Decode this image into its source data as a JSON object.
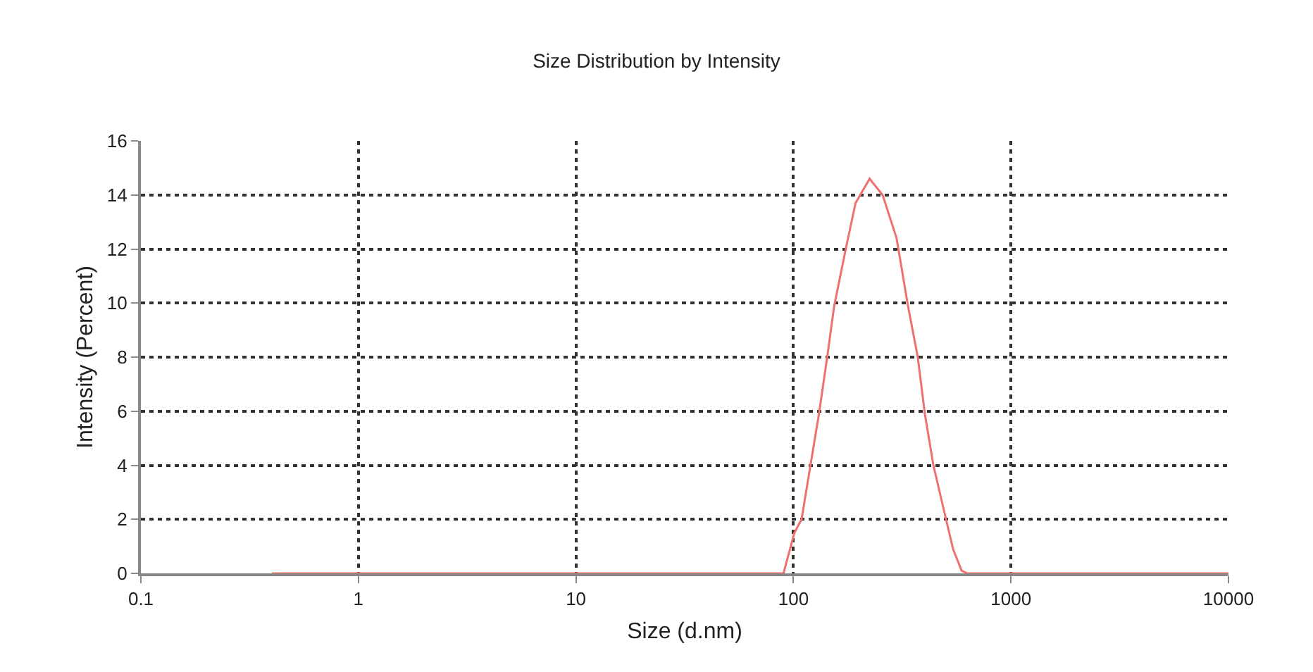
{
  "chart_data": {
    "type": "line",
    "title": "Size Distribution by Intensity",
    "xlabel": "Size (d.nm)",
    "ylabel": "Intensity (Percent)",
    "log": "x",
    "xlim": [
      0.1,
      10000
    ],
    "xticks": [
      0.1,
      1,
      10,
      100,
      1000,
      10000
    ],
    "ylim": [
      0,
      16
    ],
    "yticks": [
      0,
      2,
      4,
      6,
      8,
      10,
      12,
      14,
      16
    ],
    "grid": true,
    "marker": "none",
    "line_style": "solid",
    "series": [
      {
        "color": "#f07070",
        "x": [
          0.4,
          1,
          10,
          90,
          101,
          109,
          131,
          143,
          154,
          174,
          193,
          224,
          257,
          298,
          336,
          373,
          402,
          440,
          503,
          542,
          593,
          630,
          1000,
          10000
        ],
        "values": [
          0,
          0,
          0,
          0,
          1.5,
          2.0,
          5.9,
          8.0,
          9.9,
          12.0,
          13.7,
          14.6,
          14.0,
          12.4,
          9.9,
          8.0,
          5.9,
          4.0,
          2.0,
          0.9,
          0.1,
          0,
          0,
          0
        ]
      }
    ]
  }
}
